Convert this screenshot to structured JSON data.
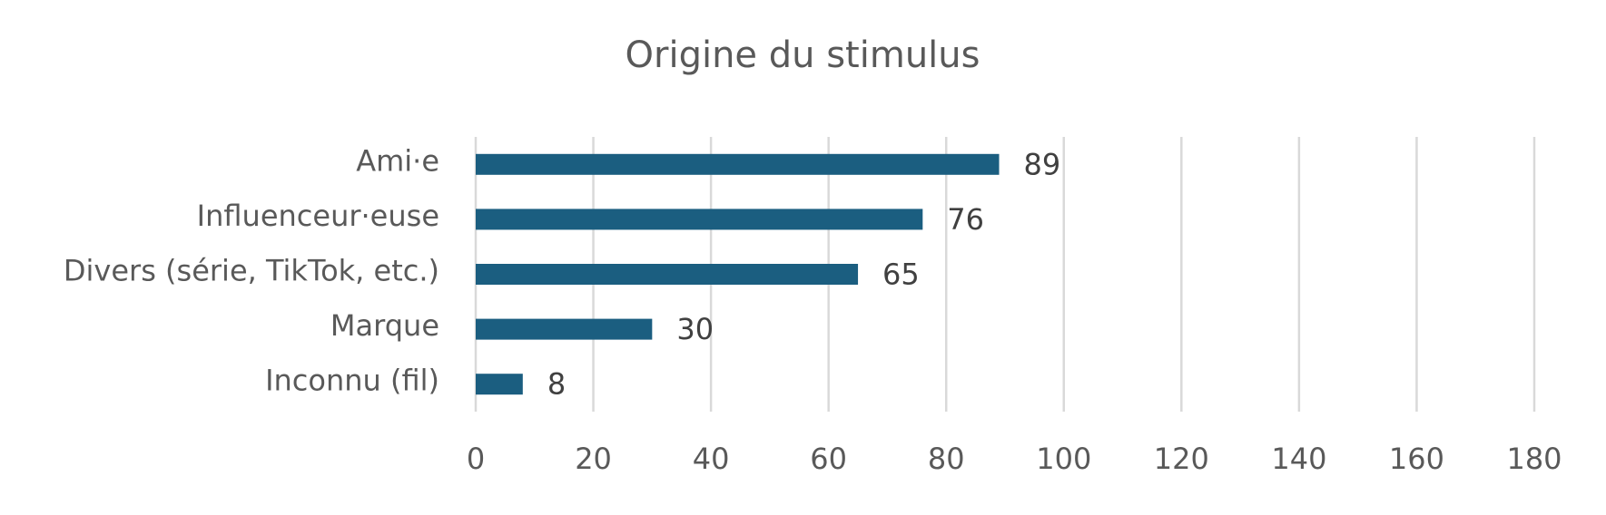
{
  "chart_data": {
    "type": "bar",
    "orientation": "horizontal",
    "title": "Origine du stimulus",
    "categories": [
      "Ami·e",
      "Influenceur·euse",
      "Divers (série, TikTok, etc.)",
      "Marque",
      "Inconnu (fil)"
    ],
    "values": [
      89,
      76,
      65,
      30,
      8
    ],
    "color": "#1b5e80",
    "xlim": [
      0,
      180
    ],
    "xticks": [
      0,
      20,
      40,
      60,
      80,
      100,
      120,
      140,
      160,
      180
    ],
    "grid": true,
    "data_labels": true
  }
}
